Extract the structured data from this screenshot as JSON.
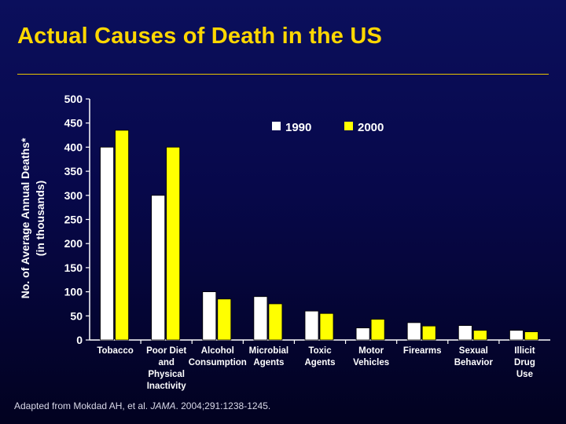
{
  "slide": {
    "title": "Actual Causes of Death in the US",
    "footnote_prefix": "Adapted from Mokdad AH,  et al. ",
    "footnote_journal": "JAMA",
    "footnote_suffix": ". 2004;291:1238-1245."
  },
  "chart_data": {
    "type": "bar",
    "title": "",
    "ylabel_line1": "No. of Average Annual Deaths*",
    "ylabel_line2": "(in thousands)",
    "xlabel": "",
    "ylim": [
      0,
      500
    ],
    "yticks": [
      0,
      50,
      100,
      150,
      200,
      250,
      300,
      350,
      400,
      450,
      500
    ],
    "legend_position": "top-center",
    "categories": [
      [
        "Tobacco"
      ],
      [
        "Poor Diet",
        "and",
        "Physical",
        "Inactivity"
      ],
      [
        "Alcohol",
        "Consumption"
      ],
      [
        "Microbial",
        "Agents"
      ],
      [
        "Toxic",
        "Agents"
      ],
      [
        "Motor",
        "Vehicles"
      ],
      [
        "Firearms"
      ],
      [
        "Sexual",
        "Behavior"
      ],
      [
        "Illicit",
        "Drug",
        "Use"
      ]
    ],
    "series": [
      {
        "name": "1990",
        "color": "#ffffff",
        "values": [
          400,
          300,
          100,
          90,
          60,
          25,
          36,
          30,
          20
        ]
      },
      {
        "name": "2000",
        "color": "#ffff00",
        "values": [
          435,
          400,
          85,
          75,
          55,
          43,
          29,
          20,
          17
        ]
      }
    ]
  }
}
